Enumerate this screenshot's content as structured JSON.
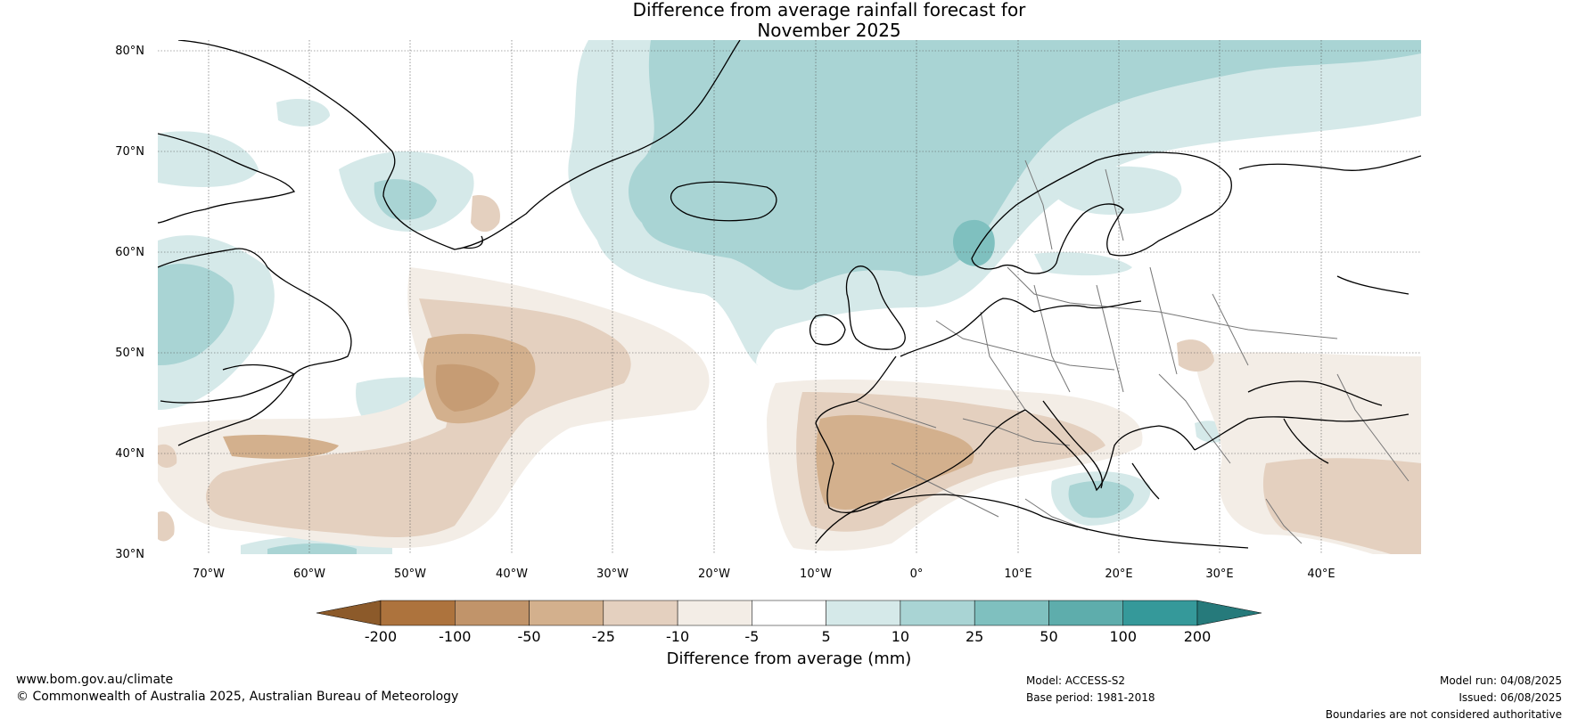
{
  "title_line1": "Difference from average rainfall forecast for",
  "title_line2": "November 2025",
  "lat_labels": [
    "80°N",
    "70°N",
    "60°N",
    "50°N",
    "40°N",
    "30°N"
  ],
  "lon_labels": [
    "70°W",
    "60°W",
    "50°W",
    "40°W",
    "30°W",
    "20°W",
    "10°W",
    "0°",
    "10°E",
    "20°E",
    "30°E",
    "40°E"
  ],
  "colorbar": {
    "title": "Difference from average (mm)",
    "tick_labels": [
      "-200",
      "-100",
      "-50",
      "-25",
      "-10",
      "-5",
      "5",
      "10",
      "25",
      "50",
      "100",
      "200"
    ],
    "colors": [
      "#8c5a2a",
      "#ad733d",
      "#c1946a",
      "#d3b08d",
      "#e4d0bf",
      "#f3ede6",
      "#ffffff",
      "#d5e9e9",
      "#a9d4d4",
      "#7fc0bf",
      "#5eadac",
      "#35999a",
      "#267a7b"
    ]
  },
  "footer": {
    "website": "www.bom.gov.au/climate",
    "copyright": "© Commonwealth of Australia 2025, Australian Bureau of Meteorology",
    "model": "Model: ACCESS-S2",
    "base_period": "Base period: 1981-2018",
    "model_run": "Model run: 04/08/2025",
    "issued": "Issued: 06/08/2025",
    "disclaimer": "Boundaries are not considered authoritative"
  }
}
